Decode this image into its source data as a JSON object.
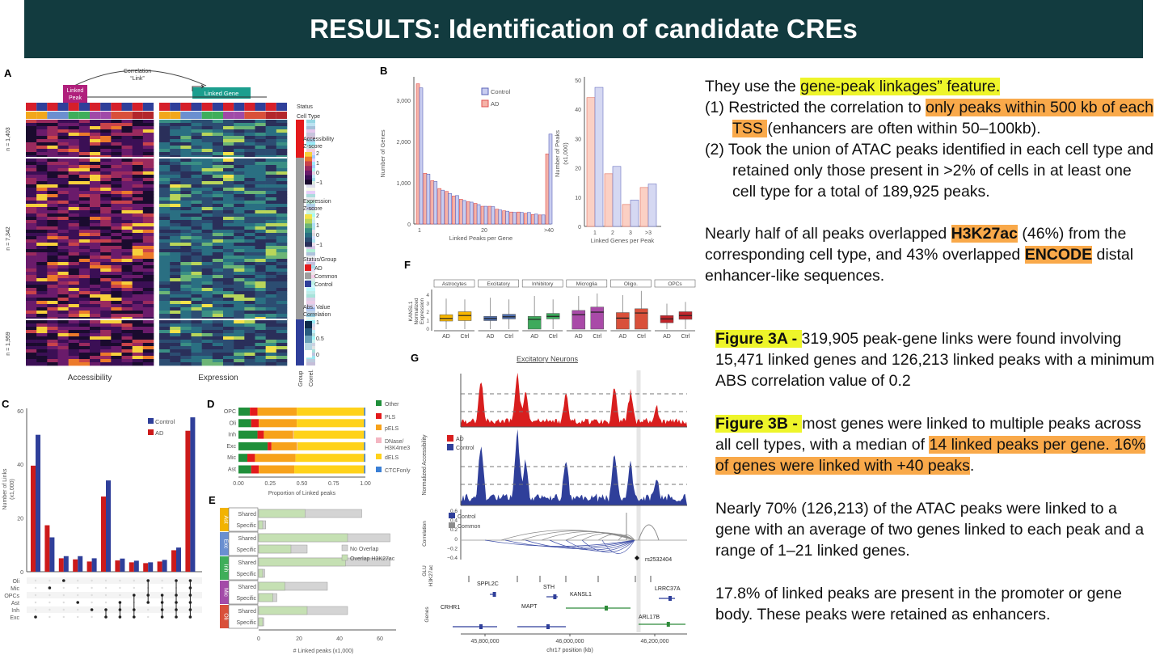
{
  "title": "RESULTS: Identification of candidate CREs",
  "notes": {
    "p1": {
      "a": "They use the ",
      "hl": "gene-peak linkages” feature."
    },
    "item1": {
      "num": "(1) ",
      "a": "Restricted the correlation to ",
      "hl": "only peaks within 500 kb of each TSS ",
      "b": " (enhancers are often within 50–100kb)."
    },
    "item2": {
      "num": "(2) ",
      "a": "Took the union of ATAC peaks identified in each cell type and retained only those present in >2% of cells in at least one cell type for a total of 189,925 peaks."
    },
    "p2": {
      "a": "Nearly half of all peaks overlapped ",
      "hl1": "H3K27ac",
      "b": " (46%) from the corresponding cell type, and 43% overlapped ",
      "hl2": "ENCODE",
      "c": " distal enhancer-like sequences."
    },
    "fig3a": {
      "label": "Figure 3A - ",
      "text": "319,905 peak-gene links were found involving 15,471 linked genes and 126,213 linked peaks with a minimum ABS correlation value of 0.2"
    },
    "fig3b": {
      "label": "Figure 3B - ",
      "a": "most genes were linked to multiple peaks across all cell types, with a median of ",
      "hl": "14 linked peaks per gene. 16% of genes were linked with +40 peaks",
      "b": "."
    },
    "p3": "Nearly 70% (126,213) of the ATAC peaks were linked to a gene with an average of two genes linked to each peak and a range of 1–21 linked genes.",
    "p4": "17.8% of linked peaks are present in the promoter or gene body. These peaks were retained as enhancers."
  },
  "panelA": {
    "letter": "A",
    "link_label": [
      "Correlation",
      "“Link”"
    ],
    "linked_peak": [
      "Linked",
      "Peak"
    ],
    "linked_gene": "Linked Gene",
    "status_label": "Status",
    "celltype_label": "Cell Type",
    "clusters": [
      "n = 1,403",
      "n = 7,342",
      "n = 1,959"
    ],
    "xlabels": [
      "Accessibility",
      "Expression"
    ],
    "side_labels": [
      "Group",
      "Correl."
    ],
    "legend_access": {
      "title": [
        "Accessibility",
        "Z-score"
      ],
      "ticks": [
        "2",
        "1",
        "0",
        "−1"
      ]
    },
    "legend_expr": {
      "title": [
        "Expression",
        "Z-score"
      ],
      "ticks": [
        "2",
        "1",
        "0",
        "−1"
      ]
    },
    "legend_group": {
      "title": "Status/Group",
      "items": [
        {
          "label": "AD",
          "color": "#e41a1c"
        },
        {
          "label": "Common",
          "color": "#9e9e9e"
        },
        {
          "label": "Control",
          "color": "#2f3f9a"
        }
      ]
    },
    "legend_corr": {
      "title": [
        "Abs. Value",
        "Correlation"
      ],
      "ticks": [
        "1",
        "0.5",
        "0"
      ]
    },
    "celltype_colors": [
      "#f2a71b",
      "#6b8fd0",
      "#3fae5a",
      "#a04aa8",
      "#d9503a",
      "#b3262b"
    ]
  },
  "chart_data": [
    {
      "id": "B-left",
      "type": "bar",
      "letter": "B",
      "xlabel": "Linked Peaks per Gene",
      "ylabel": "Number of Genes",
      "xticks": [
        "1",
        "20",
        ">40"
      ],
      "yticks": [
        "0",
        "1,000",
        "2,000",
        "3,000"
      ],
      "ylim": [
        0,
        3500
      ],
      "series": [
        {
          "name": "AD",
          "color": "#f5b3a8",
          "stroke": "#e05050",
          "values": [
            3400,
            1230,
            1050,
            860,
            790,
            680,
            600,
            540,
            500,
            430,
            430,
            360,
            320,
            290,
            290,
            260,
            230,
            220,
            1700
          ]
        },
        {
          "name": "Control",
          "color": "#c9cdf0",
          "stroke": "#5b63b8",
          "values": [
            3300,
            1210,
            1030,
            820,
            740,
            690,
            570,
            530,
            470,
            430,
            420,
            340,
            310,
            280,
            280,
            280,
            240,
            220,
            2180
          ]
        }
      ]
    },
    {
      "id": "B-right",
      "type": "bar",
      "xlabel": "Linked Genes per Peak",
      "ylabel": [
        "Number of Peaks",
        "(x1,000)"
      ],
      "categories": [
        "1",
        "2",
        "3",
        ">3"
      ],
      "yticks": [
        "0",
        "10",
        "20",
        "30",
        "40",
        "50"
      ],
      "ylim": [
        0,
        50
      ],
      "series": [
        {
          "name": "AD",
          "values": [
            44,
            18,
            7.5,
            13.3
          ]
        },
        {
          "name": "Control",
          "values": [
            47.5,
            20.5,
            9,
            14.5
          ]
        }
      ]
    },
    {
      "id": "C",
      "type": "bar",
      "letter": "C",
      "ylabel": [
        "Number of Links",
        "(x1,000)"
      ],
      "yticks": [
        "0",
        "20",
        "40",
        "60"
      ],
      "ylim": [
        0,
        60
      ],
      "legend": [
        {
          "label": "Control",
          "color": "#2f3f9a"
        },
        {
          "label": "AD",
          "color": "#cc1a1a"
        }
      ],
      "set_rows": [
        "Oli",
        "Mic",
        "OPCs",
        "Ast",
        "Inh",
        "Exc"
      ],
      "sets": [
        [
          "Exc"
        ],
        [
          "Mic"
        ],
        [
          "Oli"
        ],
        [
          "Ast"
        ],
        [
          "Inh"
        ],
        [
          "Inh",
          "Exc"
        ],
        [
          "Ast",
          "Inh",
          "Exc"
        ],
        [
          "OPCs",
          "Inh",
          "Exc"
        ],
        [
          "Oli",
          "OPCs",
          "Ast"
        ],
        [
          "OPCs",
          "Ast",
          "Inh",
          "Exc"
        ],
        [
          "Oli",
          "OPCs",
          "Ast",
          "Inh",
          "Exc"
        ],
        [
          "Oli",
          "Mic",
          "OPCs",
          "Ast",
          "Inh",
          "Exc"
        ]
      ],
      "series": [
        {
          "name": "AD",
          "values": [
            39.5,
            17.3,
            5,
            4.6,
            3.8,
            28,
            4.2,
            3.5,
            3.2,
            3.8,
            8,
            52.5
          ]
        },
        {
          "name": "Control",
          "values": [
            51,
            12.8,
            5.8,
            5.8,
            5,
            34,
            4.9,
            4.1,
            3.5,
            4.4,
            9,
            57.5
          ]
        }
      ]
    },
    {
      "id": "D",
      "type": "bar",
      "stacked": true,
      "orientation": "horizontal",
      "letter": "D",
      "xlabel": "Proportion of Linked peaks",
      "xticks": [
        "0.00",
        "0.25",
        "0.50",
        "0.75",
        "1.00"
      ],
      "xlim": [
        0,
        1
      ],
      "categories": [
        "OPC",
        "Oli",
        "Inh",
        "Exc",
        "Mic",
        "Ast"
      ],
      "segments": [
        {
          "name": "Other",
          "color": "#1f8f3a"
        },
        {
          "name": "PLS",
          "color": "#e31a1c"
        },
        {
          "name": "pELS",
          "color": "#f7a21b"
        },
        {
          "name": "DNase/ H3K4me3",
          "color": "#f4b6c2"
        },
        {
          "name": "dELS",
          "color": "#ffd21a"
        },
        {
          "name": "CTCFonly",
          "color": "#3a7fd5"
        }
      ],
      "values": [
        [
          0.09,
          0.06,
          0.31,
          0,
          0.53,
          0.01
        ],
        [
          0.1,
          0.06,
          0.3,
          0,
          0.53,
          0.01
        ],
        [
          0.15,
          0.05,
          0.23,
          0.005,
          0.555,
          0.01
        ],
        [
          0.23,
          0.03,
          0.2,
          0.005,
          0.525,
          0.01
        ],
        [
          0.07,
          0.06,
          0.32,
          0,
          0.54,
          0.01
        ],
        [
          0.1,
          0.06,
          0.28,
          0,
          0.55,
          0.01
        ]
      ],
      "legend": "right"
    },
    {
      "id": "E",
      "type": "bar",
      "orientation": "horizontal",
      "letter": "E",
      "xlabel": "# Linked peaks (x1,000)",
      "xticks": [
        "0",
        "20",
        "40",
        "60"
      ],
      "xlim": [
        0,
        65
      ],
      "groups": [
        {
          "name": "Ast",
          "color": "#f2b300"
        },
        {
          "name": "Exc",
          "color": "#6a8fd0"
        },
        {
          "name": "Inh",
          "color": "#3fae5a"
        },
        {
          "name": "Mic",
          "color": "#a34ba8"
        },
        {
          "name": "Oli",
          "color": "#d9503a"
        }
      ],
      "rows": [
        "Shared",
        "Specific"
      ],
      "overlap": [
        [
          23,
          2
        ],
        [
          44,
          16
        ],
        [
          43,
          2
        ],
        [
          13,
          7
        ],
        [
          24,
          2
        ]
      ],
      "total": [
        [
          51,
          3.5
        ],
        [
          65,
          24
        ],
        [
          65,
          3
        ],
        [
          34,
          9
        ],
        [
          44,
          2.5
        ]
      ],
      "legend": [
        {
          "label": "No Overlap",
          "color": "#d4d4d4"
        },
        {
          "label": "Overlap H3K27ac",
          "color": "#c5e0b3"
        }
      ]
    },
    {
      "id": "F",
      "type": "box",
      "letter": "F",
      "ylabel": [
        "KANSL1",
        "Normalized",
        "Expression"
      ],
      "yticks": [
        "0",
        "1",
        "2",
        "3",
        "4"
      ],
      "ylim": [
        0,
        4.5
      ],
      "facets": [
        {
          "name": "Astrocytes",
          "color": "#f7b500",
          "boxes": [
            {
              "label": "AD",
              "min": 0,
              "q1": 0.95,
              "median": 1.25,
              "q3": 1.7,
              "max": 3.6
            },
            {
              "label": "Ctrl",
              "min": 0,
              "q1": 1.0,
              "median": 1.6,
              "q3": 2.05,
              "max": 3.5
            }
          ]
        },
        {
          "name": "Excitatory",
          "color": "#4f6fb0",
          "boxes": [
            {
              "label": "AD",
              "min": 0,
              "q1": 1.0,
              "median": 1.25,
              "q3": 1.5,
              "max": 3.7
            },
            {
              "label": "Ctrl",
              "min": 0,
              "q1": 1.2,
              "median": 1.45,
              "q3": 1.75,
              "max": 3.5
            }
          ]
        },
        {
          "name": "Inhibitory",
          "color": "#3daa5c",
          "boxes": [
            {
              "label": "AD",
              "min": 0,
              "q1": 0,
              "median": 1.15,
              "q3": 1.5,
              "max": 3.9
            },
            {
              "label": "Ctrl",
              "min": 0,
              "q1": 1.2,
              "median": 1.5,
              "q3": 1.85,
              "max": 3.5
            }
          ]
        },
        {
          "name": "Microglia",
          "color": "#a94aa8",
          "boxes": [
            {
              "label": "AD",
              "min": 0,
              "q1": 0,
              "median": 1.7,
              "q3": 2.2,
              "max": 3.9
            },
            {
              "label": "Ctrl",
              "min": 0,
              "q1": 0,
              "median": 2.0,
              "q3": 2.6,
              "max": 4.2
            }
          ]
        },
        {
          "name": "Oligo.",
          "color": "#d9503a",
          "boxes": [
            {
              "label": "AD",
              "min": 0,
              "q1": 0,
              "median": 1.3,
              "q3": 1.95,
              "max": 4.0
            },
            {
              "label": "Ctrl",
              "min": 0,
              "q1": 0,
              "median": 1.9,
              "q3": 2.4,
              "max": 4.5
            }
          ]
        },
        {
          "name": "OPCs",
          "color": "#c0252b",
          "boxes": [
            {
              "label": "AD",
              "min": 0,
              "q1": 0.75,
              "median": 1.2,
              "q3": 1.6,
              "max": 3.0
            },
            {
              "label": "Ctrl",
              "min": 0,
              "q1": 1.15,
              "median": 1.6,
              "q3": 2.05,
              "max": 3.2
            }
          ]
        }
      ]
    },
    {
      "id": "G",
      "type": "area",
      "letter": "G",
      "title": "Excitatory Neurons",
      "ylabel": "Normalized Accessibility",
      "tracks_legend": [
        {
          "label": "AD",
          "color": "#d81e1e"
        },
        {
          "label": "Control",
          "color": "#2f3f9a"
        }
      ],
      "corr_label": "Correlation",
      "corr_ticks": [
        "0.6",
        "0.4",
        "0.2",
        "0",
        "−0.2",
        "−0.4"
      ],
      "corr_legend": [
        {
          "label": "Control",
          "color": "#2f3f9a"
        },
        {
          "label": "Common",
          "color": "#8c8c8c"
        }
      ],
      "snp": "rs2532404",
      "h3k27ac_label": [
        "GLU",
        "H3K27ac"
      ],
      "genes_label": "Genes",
      "genes": [
        {
          "name": "CRHR1",
          "color": "#2f3f9a"
        },
        {
          "name": "SPPL2C",
          "color": "#2f3f9a"
        },
        {
          "name": "MAPT",
          "color": "#2f3f9a"
        },
        {
          "name": "STH",
          "color": "#2f3f9a"
        },
        {
          "name": "KANSL1",
          "color": "#2e8b3a"
        },
        {
          "name": "LRRC37A",
          "color": "#2f3f9a"
        },
        {
          "name": "ARL17B",
          "color": "#2e8b3a"
        }
      ],
      "xticks": [
        "45,800,000",
        "46,000,000",
        "46,200,000"
      ],
      "xlabel": "chr17 position (kb)"
    }
  ]
}
